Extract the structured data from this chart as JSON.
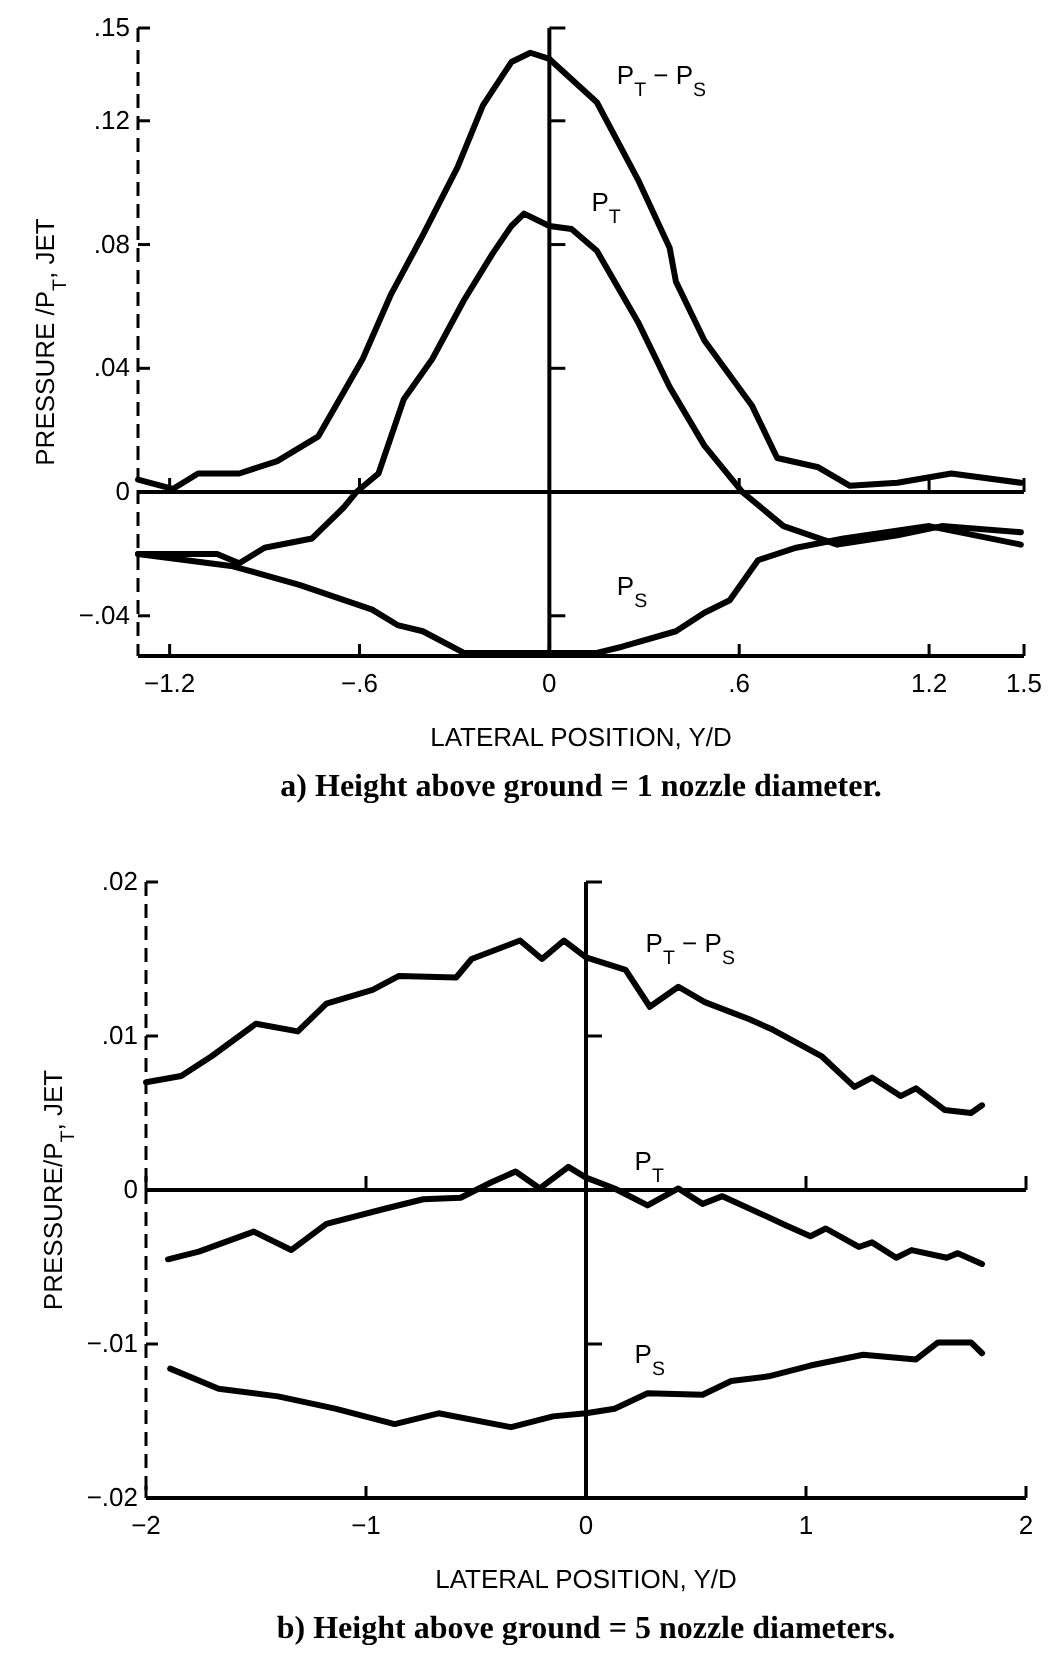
{
  "chart_data": [
    {
      "type": "line",
      "title": "a)   Height above ground = 1 nozzle diameter.",
      "xlabel": "LATERAL POSITION, Y/D",
      "ylabel": "PRESSURE /P$_{T}$, JET",
      "xlim": [
        -1.3,
        1.5
      ],
      "ylim": [
        -0.053,
        0.15
      ],
      "xticks": [
        {
          "value": -1.2,
          "label": "−1.2"
        },
        {
          "value": -0.6,
          "label": "−.6"
        },
        0,
        {
          "value": 0.6,
          "label": ".6"
        },
        1.2,
        1.5
      ],
      "yticks": [
        {
          "value": -0.04,
          "label": "−.04"
        },
        0,
        {
          "value": 0.04,
          "label": ".04"
        },
        {
          "value": 0.08,
          "label": ".08"
        },
        {
          "value": 0.12,
          "label": ".12"
        },
        {
          "value": 0.15,
          "label": ".15"
        }
      ],
      "series": [
        {
          "name": "P$_{T}$ − P$_{S}$",
          "color": "#000000",
          "x": [
            -1.3,
            -1.19,
            -1.11,
            -0.98,
            -0.86,
            -0.73,
            -0.59,
            -0.5,
            -0.4,
            -0.29,
            -0.21,
            -0.12,
            -0.06,
            0.0,
            0.15,
            0.28,
            0.38,
            0.4,
            0.49,
            0.64,
            0.72,
            0.85,
            0.95,
            1.1,
            1.27,
            1.49
          ],
          "values": [
            0.004,
            0.001,
            0.006,
            0.006,
            0.01,
            0.018,
            0.043,
            0.064,
            0.083,
            0.105,
            0.125,
            0.139,
            0.142,
            0.14,
            0.126,
            0.101,
            0.079,
            0.068,
            0.049,
            0.028,
            0.011,
            0.008,
            0.002,
            0.003,
            0.006,
            0.003
          ]
        },
        {
          "name": "P$_{T}$",
          "color": "#000000",
          "x": [
            -1.3,
            -1.05,
            -0.98,
            -0.9,
            -0.75,
            -0.65,
            -0.61,
            -0.54,
            -0.46,
            -0.37,
            -0.27,
            -0.18,
            -0.12,
            -0.08,
            0.0,
            0.07,
            0.15,
            0.28,
            0.38,
            0.49,
            0.61,
            0.74,
            0.91,
            1.1,
            1.24,
            1.49
          ],
          "values": [
            -0.02,
            -0.02,
            -0.023,
            -0.018,
            -0.015,
            -0.005,
            0.0,
            0.006,
            0.03,
            0.043,
            0.062,
            0.077,
            0.086,
            0.09,
            0.086,
            0.085,
            0.078,
            0.055,
            0.034,
            0.015,
            0.0,
            -0.011,
            -0.017,
            -0.014,
            -0.011,
            -0.013
          ]
        },
        {
          "name": "P$_{S}$",
          "color": "#000000",
          "x": [
            -1.3,
            -1.0,
            -0.79,
            -0.56,
            -0.48,
            -0.4,
            -0.27,
            0.0,
            0.15,
            0.23,
            0.4,
            0.49,
            0.57,
            0.66,
            0.78,
            0.93,
            1.2,
            1.49
          ],
          "values": [
            -0.02,
            -0.024,
            -0.03,
            -0.038,
            -0.043,
            -0.045,
            -0.052,
            -0.052,
            -0.052,
            -0.05,
            -0.045,
            -0.039,
            -0.035,
            -0.022,
            -0.018,
            -0.015,
            -0.011,
            -0.017
          ]
        }
      ]
    },
    {
      "type": "line",
      "title": "b)   Height above ground = 5 nozzle diameters.",
      "xlabel": "LATERAL POSITION, Y/D",
      "ylabel": "PRESSURE/P$_{T}$, JET",
      "xlim": [
        -2,
        2
      ],
      "ylim": [
        -0.02,
        0.02
      ],
      "xticks": [
        {
          "value": -2,
          "label": "−2"
        },
        {
          "value": -1,
          "label": "−1"
        },
        0,
        1,
        2
      ],
      "yticks": [
        {
          "value": -0.02,
          "label": "−.02"
        },
        {
          "value": -0.01,
          "label": "−.01"
        },
        0,
        {
          "value": 0.01,
          "label": ".01"
        },
        {
          "value": 0.02,
          "label": ".02"
        }
      ],
      "series": [
        {
          "name": "P$_{T}$ − P$_{S}$",
          "color": "#000000",
          "x": [
            -2.0,
            -1.84,
            -1.7,
            -1.5,
            -1.31,
            -1.18,
            -0.97,
            -0.85,
            -0.59,
            -0.52,
            -0.3,
            -0.2,
            -0.1,
            0.0,
            0.18,
            0.29,
            0.42,
            0.54,
            0.74,
            0.85,
            1.07,
            1.22,
            1.3,
            1.43,
            1.5,
            1.63,
            1.75,
            1.8
          ],
          "values": [
            0.007,
            0.0074,
            0.0087,
            0.0108,
            0.0103,
            0.0121,
            0.013,
            0.0139,
            0.0138,
            0.015,
            0.0162,
            0.015,
            0.0162,
            0.0151,
            0.0143,
            0.0119,
            0.0132,
            0.0122,
            0.0111,
            0.0104,
            0.0087,
            0.0067,
            0.0073,
            0.0061,
            0.0066,
            0.0052,
            0.005,
            0.0055
          ]
        },
        {
          "name": "P$_{T}$",
          "color": "#000000",
          "x": [
            -1.9,
            -1.76,
            -1.51,
            -1.34,
            -1.18,
            -0.91,
            -0.74,
            -0.57,
            -0.43,
            -0.32,
            -0.21,
            -0.08,
            0.0,
            0.13,
            0.28,
            0.42,
            0.53,
            0.62,
            0.91,
            1.02,
            1.09,
            1.24,
            1.3,
            1.41,
            1.48,
            1.64,
            1.69,
            1.8
          ],
          "values": [
            -0.0045,
            -0.004,
            -0.0027,
            -0.0039,
            -0.0022,
            -0.0012,
            -0.0006,
            -0.0005,
            0.0005,
            0.0012,
            0.0001,
            0.0015,
            0.0008,
            0.0001,
            -0.001,
            0.0001,
            -0.0009,
            -0.0004,
            -0.0023,
            -0.003,
            -0.0025,
            -0.0037,
            -0.0034,
            -0.0044,
            -0.0039,
            -0.0044,
            -0.0041,
            -0.0048
          ]
        },
        {
          "name": "P$_{S}$",
          "color": "#000000",
          "x": [
            -1.89,
            -1.67,
            -1.4,
            -1.14,
            -0.87,
            -0.67,
            -0.34,
            -0.15,
            0.0,
            0.13,
            0.28,
            0.53,
            0.66,
            0.83,
            1.02,
            1.26,
            1.5,
            1.6,
            1.75,
            1.8
          ],
          "values": [
            -0.0116,
            -0.0129,
            -0.0134,
            -0.0142,
            -0.0152,
            -0.0145,
            -0.0154,
            -0.0147,
            -0.0145,
            -0.0142,
            -0.0132,
            -0.0133,
            -0.0124,
            -0.0121,
            -0.0114,
            -0.0107,
            -0.011,
            -0.0099,
            -0.0099,
            -0.0106
          ]
        }
      ]
    }
  ]
}
